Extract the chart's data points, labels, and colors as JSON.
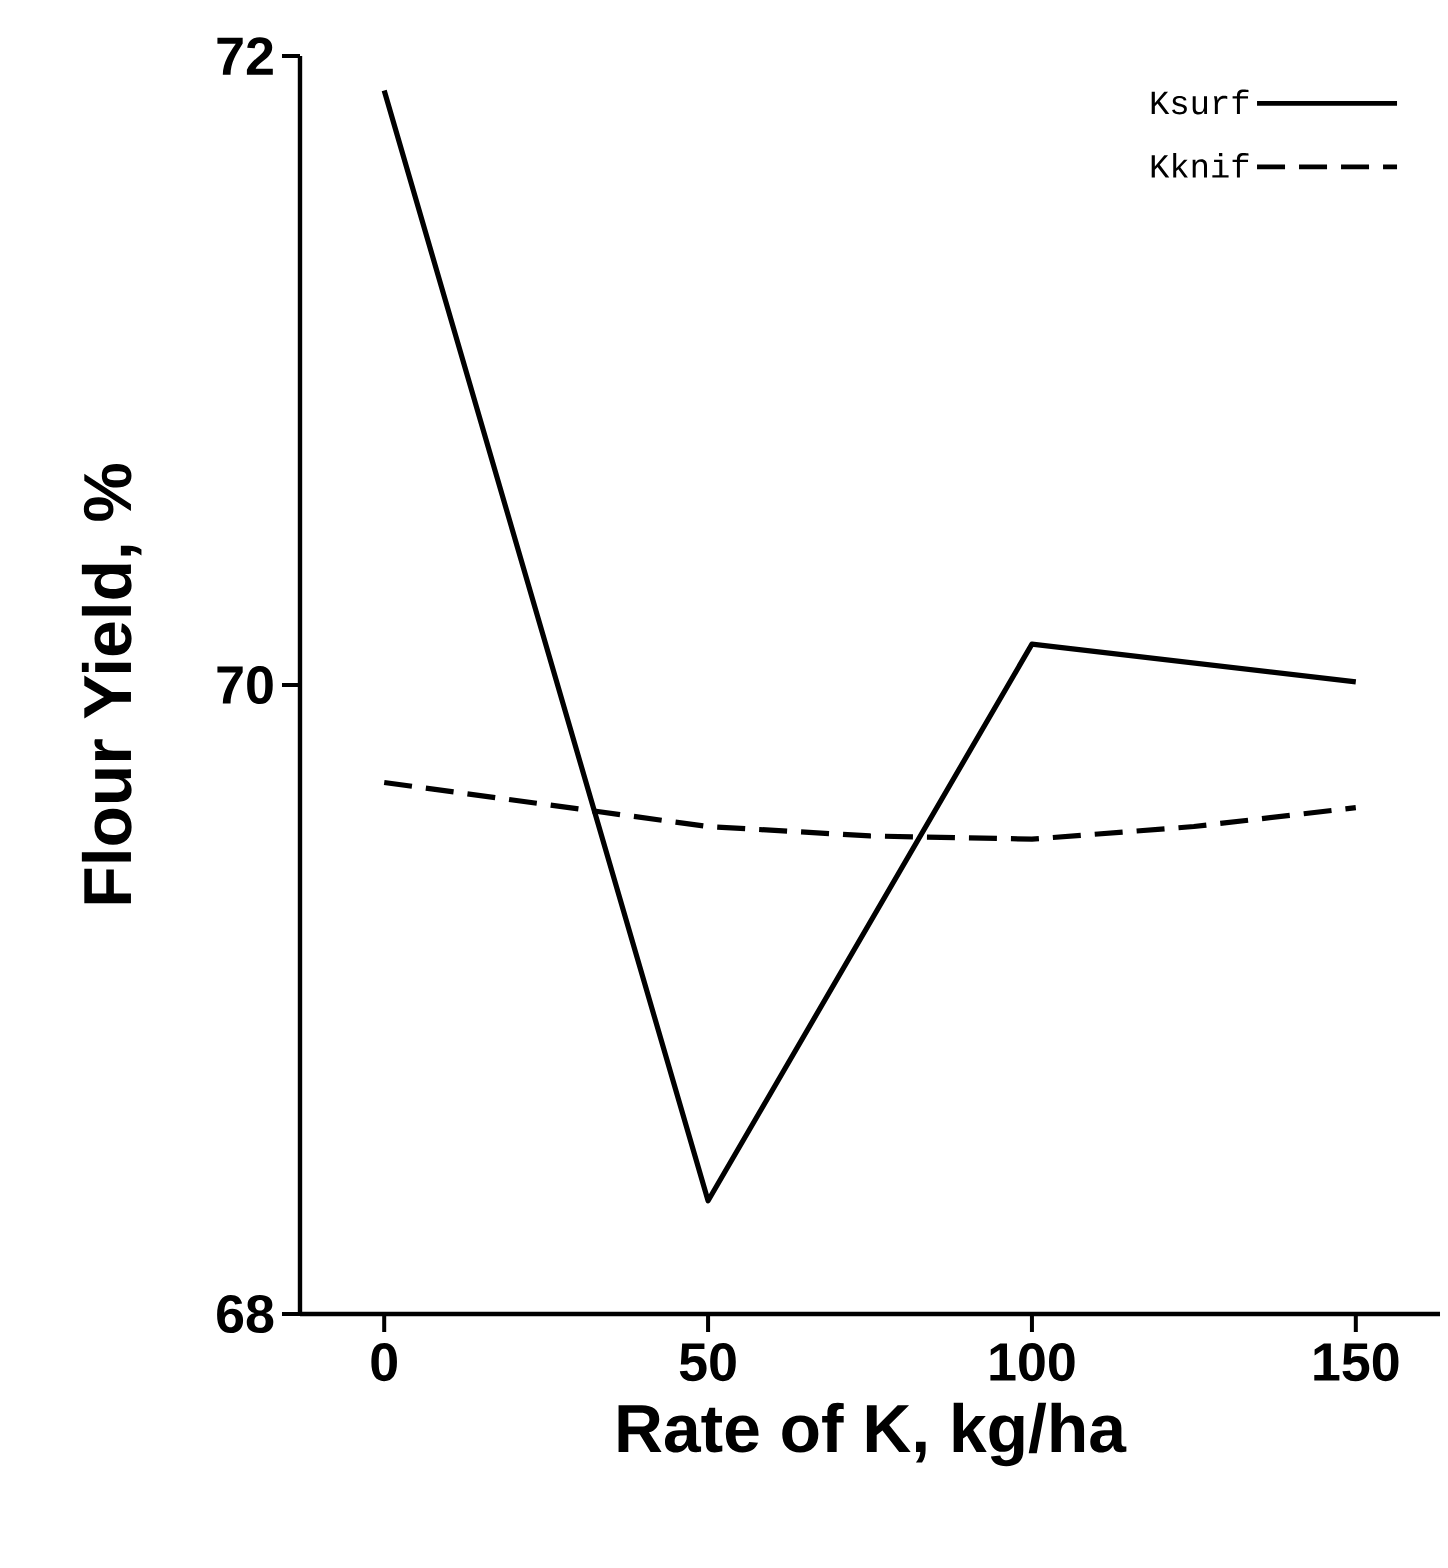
{
  "chart_data": {
    "type": "line",
    "xlabel": "Rate of K, kg/ha",
    "ylabel": "Flour Yield, %",
    "x": [
      0,
      50,
      100,
      150
    ],
    "series": [
      {
        "name": "Ksurf",
        "color": "#000000",
        "line_style": "solid",
        "values": [
          71.89,
          68.36,
          70.13,
          70.01
        ]
      },
      {
        "name": "Kknif",
        "color": "#000000",
        "line_style": "dashed",
        "x": [
          0,
          25,
          50,
          75,
          100,
          125,
          150
        ],
        "values": [
          69.69,
          69.62,
          69.55,
          69.52,
          69.51,
          69.55,
          69.61
        ]
      }
    ],
    "xlim": [
      -13,
      163
    ],
    "ylim": [
      68,
      72
    ],
    "xticks": [
      0,
      50,
      100,
      150
    ],
    "yticks": [
      68,
      70,
      72
    ],
    "grid": false,
    "legend": "top right",
    "marker": "none"
  }
}
